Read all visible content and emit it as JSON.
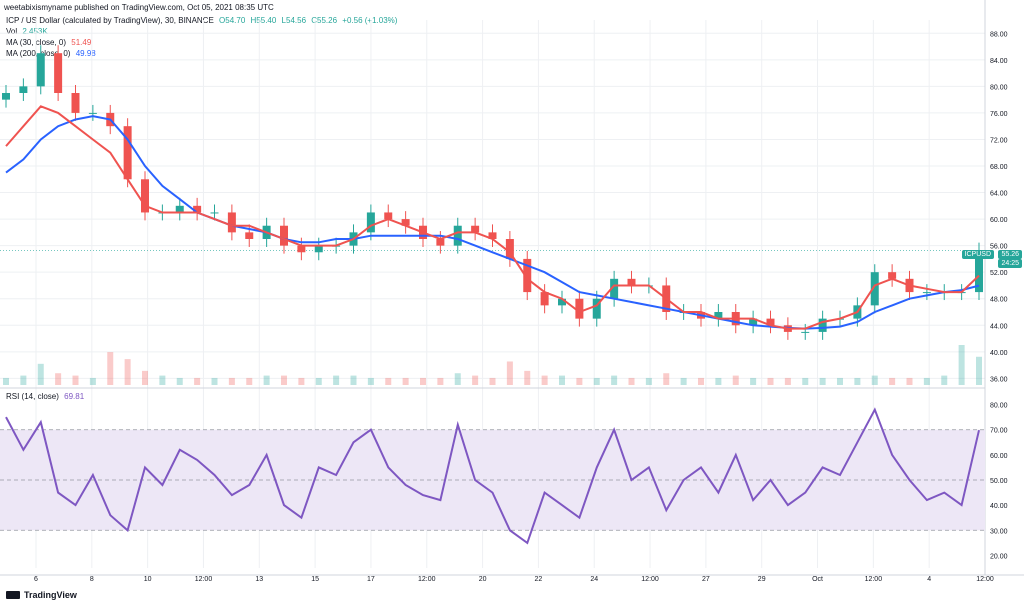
{
  "caption": "weetabixismyname published on TradingView.com, Oct 05, 2021 08:35 UTC",
  "header": {
    "symbol_line": "ICP / US Dollar (calculated by TradingView), 30, BINANCE",
    "o": "O54.70",
    "h": "H55.40",
    "l": "L54.56",
    "c": "C55.26",
    "chg": "+0.56 (+1.03%)",
    "vol_label": "Vol",
    "vol_value": "2.453K",
    "ma30_label": "MA (30, close, 0)",
    "ma30_value": "51.49",
    "ma200_label": "MA (200, close, 0)",
    "ma200_value": "49.98",
    "rsi_label": "RSI (14, close)",
    "rsi_value": "69.81"
  },
  "tags": {
    "symbol": "ICPUSD",
    "price": "55.26",
    "countdown": "24:25"
  },
  "logo_text": "TradingView",
  "colors": {
    "up": "#26a69a",
    "down": "#ef5350",
    "ma30": "#ef5350",
    "ma200": "#2962ff",
    "rsi": "#7e57c2",
    "rsi_band": "#ede7f6",
    "grid": "#eef0f3",
    "axis_text": "#131722"
  },
  "chart_data": [
    {
      "type": "candlestick",
      "title": "ICP / US Dollar (calculated by TradingView), 30, BINANCE",
      "ylim": [
        35,
        90
      ],
      "y_ticks": [
        "36.00",
        "40.00",
        "44.00",
        "48.00",
        "52.00",
        "56.00",
        "60.00",
        "64.00",
        "68.00",
        "72.00",
        "76.00",
        "80.00",
        "84.00",
        "88.00"
      ],
      "x_ticks": [
        "6",
        "8",
        "10",
        "12:00",
        "13",
        "15",
        "17",
        "12:00",
        "20",
        "22",
        "24",
        "12:00",
        "27",
        "29",
        "Oct",
        "12:00",
        "4",
        "12:00"
      ],
      "x": [
        "5.9",
        "6.3",
        "6.6",
        "7.0",
        "7.2",
        "7.4",
        "7.6",
        "7.8",
        "8.2",
        "8.6",
        "9.0",
        "9.6",
        "10.0",
        "10.6",
        "11.4",
        "12.2",
        "12.9",
        "13.4",
        "13.8",
        "14.4",
        "15.0",
        "15.6",
        "16.2",
        "16.8",
        "17.4",
        "18.0",
        "18.6",
        "19.2",
        "19.8",
        "20.2",
        "20.6",
        "21.0",
        "21.6",
        "22.0",
        "22.6",
        "23.2",
        "23.8",
        "24.4",
        "24.8",
        "25.2",
        "25.8",
        "26.4",
        "27.0",
        "27.6",
        "28.2",
        "28.8",
        "29.4",
        "30.0",
        "Oct 1.0",
        "Oct 1.4",
        "Oct 1.8",
        "Oct 2.4",
        "Oct 3.0",
        "Oct 3.6",
        "Oct 4.2",
        "Oct 4.8",
        "Oct 5.2"
      ],
      "close": [
        79,
        80,
        85,
        79,
        76,
        76,
        74,
        66,
        61,
        61,
        62,
        61,
        61,
        58,
        57,
        59,
        56,
        55,
        56,
        56,
        58,
        61,
        60,
        59,
        57,
        56,
        59,
        58,
        57,
        54,
        49,
        47,
        48,
        45,
        48,
        51,
        50,
        50,
        46,
        46,
        45,
        46,
        44,
        45,
        44,
        43,
        43,
        45,
        45,
        47,
        52,
        51,
        49,
        49,
        49,
        49,
        55.26
      ],
      "ma30": [
        71,
        74,
        77,
        76,
        74,
        72,
        70,
        66,
        62,
        61,
        61,
        61,
        60,
        59,
        59,
        58,
        57,
        56,
        56,
        56,
        57,
        59,
        60,
        59,
        58,
        57,
        58,
        58,
        57,
        55,
        51,
        49,
        48,
        46,
        47,
        50,
        50,
        50,
        48,
        46,
        46,
        45,
        45,
        45,
        44,
        43.5,
        43.5,
        44.5,
        45,
        46,
        50,
        51,
        50,
        49.5,
        49,
        49,
        51.49
      ],
      "ma200": [
        67,
        69,
        72,
        74,
        75,
        75.5,
        75,
        72,
        68,
        65,
        63,
        61,
        60,
        59,
        58.5,
        58,
        57,
        56.5,
        56.5,
        57,
        57,
        57.5,
        57.5,
        57.5,
        57.5,
        57.5,
        57,
        56,
        55,
        54,
        53,
        52,
        50.5,
        49,
        48.5,
        48,
        47.5,
        47,
        46.5,
        46,
        45.5,
        45,
        44.5,
        44,
        43.8,
        43.6,
        43.5,
        43.6,
        43.8,
        44.5,
        46,
        47,
        48,
        48.5,
        49,
        49.3,
        49.98
      ],
      "volume": [
        3,
        4,
        9,
        5,
        4,
        3,
        14,
        11,
        6,
        4,
        3,
        3,
        3,
        3,
        3,
        4,
        4,
        3,
        3,
        4,
        4,
        3,
        3,
        3,
        3,
        3,
        5,
        4,
        3,
        10,
        6,
        4,
        4,
        3,
        3,
        4,
        3,
        3,
        5,
        3,
        3,
        3,
        4,
        3,
        3,
        3,
        3,
        3,
        3,
        3,
        4,
        3,
        3,
        3,
        4,
        17,
        12
      ],
      "series": [
        {
          "name": "MA (30, close, 0)",
          "last": 51.49
        },
        {
          "name": "MA (200, close, 0)",
          "last": 49.98
        }
      ]
    },
    {
      "type": "line",
      "title": "RSI (14, close)",
      "ylim": [
        15,
        85
      ],
      "y_ticks": [
        "20.00",
        "30.00",
        "40.00",
        "50.00",
        "60.00",
        "70.00",
        "80.00"
      ],
      "band": [
        30,
        70
      ],
      "levels": [
        30,
        50,
        70
      ],
      "rsi": [
        75,
        62,
        73,
        45,
        40,
        52,
        36,
        30,
        55,
        48,
        62,
        58,
        52,
        44,
        48,
        60,
        40,
        35,
        55,
        52,
        65,
        70,
        55,
        48,
        44,
        42,
        72,
        50,
        45,
        30,
        25,
        45,
        40,
        35,
        55,
        70,
        50,
        55,
        38,
        50,
        55,
        45,
        60,
        42,
        50,
        40,
        45,
        55,
        52,
        65,
        78,
        60,
        50,
        42,
        45,
        40,
        69.81
      ]
    }
  ]
}
